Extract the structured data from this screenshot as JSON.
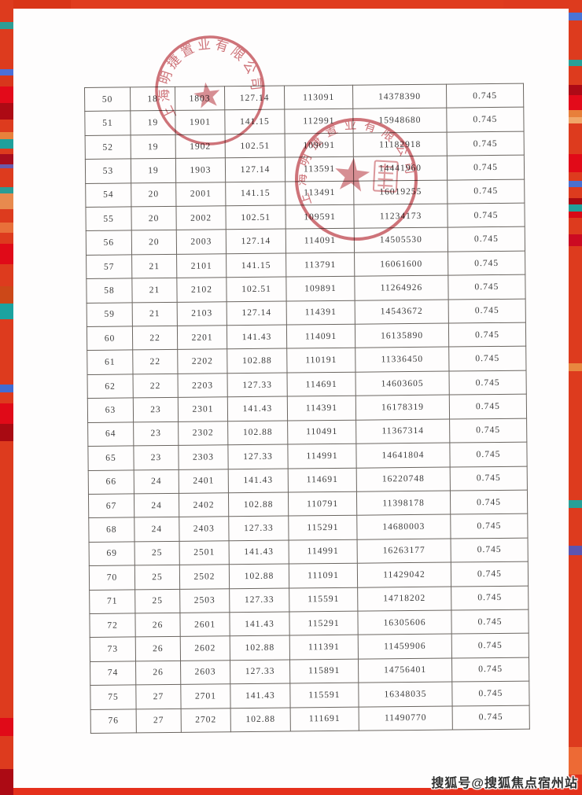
{
  "table": {
    "rows": [
      [
        "50",
        "18",
        "1803",
        "127.14",
        "113091",
        "14378390",
        "0.745"
      ],
      [
        "51",
        "19",
        "1901",
        "141.15",
        "112991",
        "15948680",
        "0.745"
      ],
      [
        "52",
        "19",
        "1902",
        "102.51",
        "109091",
        "11182918",
        "0.745"
      ],
      [
        "53",
        "19",
        "1903",
        "127.14",
        "113591",
        "14441960",
        "0.745"
      ],
      [
        "54",
        "20",
        "2001",
        "141.15",
        "113491",
        "16019255",
        "0.745"
      ],
      [
        "55",
        "20",
        "2002",
        "102.51",
        "109591",
        "11234173",
        "0.745"
      ],
      [
        "56",
        "20",
        "2003",
        "127.14",
        "114091",
        "14505530",
        "0.745"
      ],
      [
        "57",
        "21",
        "2101",
        "141.15",
        "113791",
        "16061600",
        "0.745"
      ],
      [
        "58",
        "21",
        "2102",
        "102.51",
        "109891",
        "11264926",
        "0.745"
      ],
      [
        "59",
        "21",
        "2103",
        "127.14",
        "114391",
        "14543672",
        "0.745"
      ],
      [
        "60",
        "22",
        "2201",
        "141.43",
        "114091",
        "16135890",
        "0.745"
      ],
      [
        "61",
        "22",
        "2202",
        "102.88",
        "110191",
        "11336450",
        "0.745"
      ],
      [
        "62",
        "22",
        "2203",
        "127.33",
        "114691",
        "14603605",
        "0.745"
      ],
      [
        "63",
        "23",
        "2301",
        "141.43",
        "114391",
        "16178319",
        "0.745"
      ],
      [
        "64",
        "23",
        "2302",
        "102.88",
        "110491",
        "11367314",
        "0.745"
      ],
      [
        "65",
        "23",
        "2303",
        "127.33",
        "114991",
        "14641804",
        "0.745"
      ],
      [
        "66",
        "24",
        "2401",
        "141.43",
        "114691",
        "16220748",
        "0.745"
      ],
      [
        "67",
        "24",
        "2402",
        "102.88",
        "110791",
        "11398178",
        "0.745"
      ],
      [
        "68",
        "24",
        "2403",
        "127.33",
        "115291",
        "14680003",
        "0.745"
      ],
      [
        "69",
        "25",
        "2501",
        "141.43",
        "114991",
        "16263177",
        "0.745"
      ],
      [
        "70",
        "25",
        "2502",
        "102.88",
        "111091",
        "11429042",
        "0.745"
      ],
      [
        "71",
        "25",
        "2503",
        "127.33",
        "115591",
        "14718202",
        "0.745"
      ],
      [
        "72",
        "26",
        "2601",
        "141.43",
        "115291",
        "16305606",
        "0.745"
      ],
      [
        "73",
        "26",
        "2602",
        "102.88",
        "111391",
        "11459906",
        "0.745"
      ],
      [
        "74",
        "26",
        "2603",
        "127.33",
        "115891",
        "14756401",
        "0.745"
      ],
      [
        "75",
        "27",
        "2701",
        "141.43",
        "115591",
        "16348035",
        "0.745"
      ],
      [
        "76",
        "27",
        "2702",
        "102.88",
        "111691",
        "11490770",
        "0.745"
      ]
    ]
  },
  "stamps": {
    "company_seal_top": {
      "ring_text": "上海明捷置业有限公司"
    },
    "company_seal_middle": {
      "ring_text": "上海明捷置业有限公司"
    }
  },
  "watermark": {
    "text": "搜狐号@搜狐焦点宿州站"
  },
  "colors": {
    "border_base": "#dd3b1e",
    "bright_red_strip": "#e30a1a",
    "dark_red_strip": "#a80a14",
    "teal_strip": "#2a9d95",
    "blue_strip": "#4a72d6",
    "orange_strip": "#e8873f",
    "purple_strip": "#6a5bac",
    "seal_red": "#c4555c",
    "bottom_bar_red": "#e5301c"
  }
}
